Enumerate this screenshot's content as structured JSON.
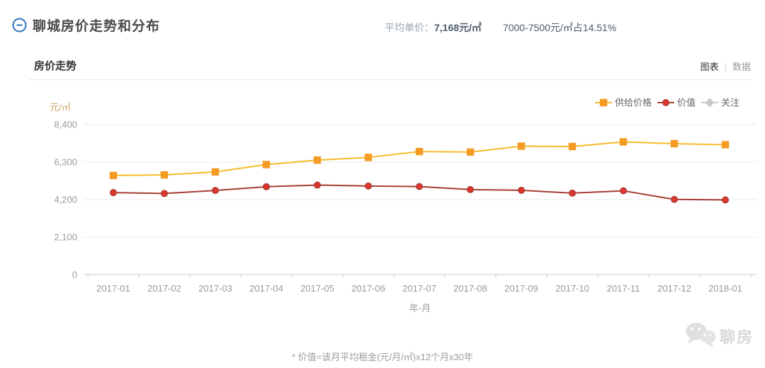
{
  "page": {
    "title": "聊城房价走势和分布",
    "stats": {
      "avg_label": "平均单价：",
      "avg_value": "7,168元/㎡",
      "range_stat": "7000-7500元/㎡占14.51%"
    }
  },
  "section": {
    "title": "房价走势",
    "tabs": {
      "chart": "图表",
      "separator": "|",
      "data": "数据"
    }
  },
  "chart_data": {
    "type": "line",
    "title": "房价走势",
    "xlabel": "年-月",
    "ylabel": "元/㎡",
    "x": [
      "2017-01",
      "2017-02",
      "2017-03",
      "2017-04",
      "2017-05",
      "2017-06",
      "2017-07",
      "2017-08",
      "2017-09",
      "2017-10",
      "2017-11",
      "2017-12",
      "2018-01"
    ],
    "series": [
      {
        "name": "供给价格",
        "marker": "square",
        "line_color": "#f7ba2a",
        "marker_color": "#f59a23",
        "marker_stroke": "#f59a23",
        "values": [
          5550,
          5580,
          5750,
          6160,
          6410,
          6560,
          6890,
          6860,
          7190,
          7170,
          7430,
          7330,
          7270
        ]
      },
      {
        "name": "价值",
        "marker": "circle",
        "line_color": "#a83c34",
        "marker_color": "#e0352b",
        "marker_stroke": "#a83c34",
        "values": [
          4590,
          4540,
          4710,
          4920,
          5010,
          4960,
          4930,
          4760,
          4720,
          4560,
          4690,
          4210,
          4180
        ]
      },
      {
        "name": "关注",
        "marker": "diamond",
        "line_color": "#c8c8c8",
        "marker_color": "#c8c8c8",
        "marker_stroke": "#c8c8c8",
        "values": null
      }
    ],
    "y_axis": {
      "ticks": [
        0,
        2100,
        4200,
        6300,
        8400
      ],
      "max": 8400,
      "unit_color": "#c8a46a"
    },
    "ylim": [
      0,
      8400
    ],
    "grid": true,
    "legend_position": "top-right"
  },
  "footnote": "* 价值=该月平均租金(元/月/㎡)x12个月x30年",
  "watermark": {
    "logo": "chat-bubbles",
    "text": "聊房"
  }
}
